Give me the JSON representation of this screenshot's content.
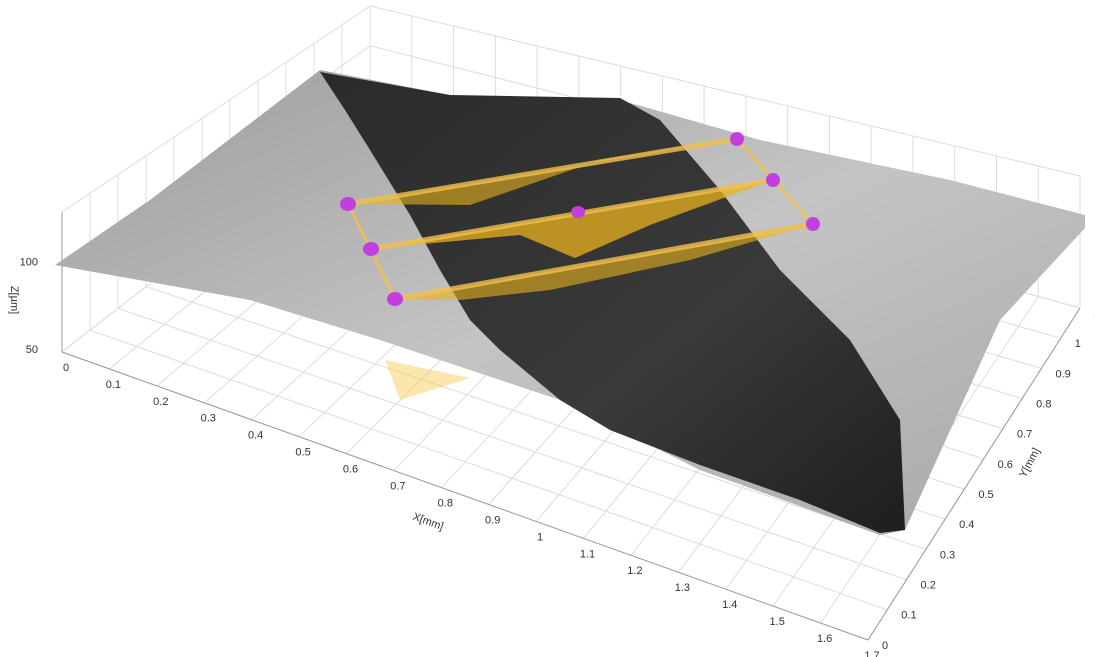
{
  "chart_data": {
    "type": "surface3d",
    "x_label": "X[mm]",
    "y_label": "Y[mm]",
    "z_label": "Z[µm]",
    "xlim": [
      0,
      1.7
    ],
    "ylim": [
      0,
      1.1
    ],
    "zlim": [
      50,
      130
    ],
    "xticks": [
      0,
      0.1,
      0.2,
      0.3,
      0.4,
      0.5,
      0.6,
      0.7,
      0.8,
      0.9,
      1,
      1.1,
      1.2,
      1.3,
      1.4,
      1.5,
      1.6,
      1.7
    ],
    "yticks": [
      0,
      0.1,
      0.2,
      0.3,
      0.4,
      0.5,
      0.6,
      0.7,
      0.8,
      0.9,
      1,
      1.1
    ],
    "zticks": [
      50,
      100
    ],
    "grid": true
  }
}
